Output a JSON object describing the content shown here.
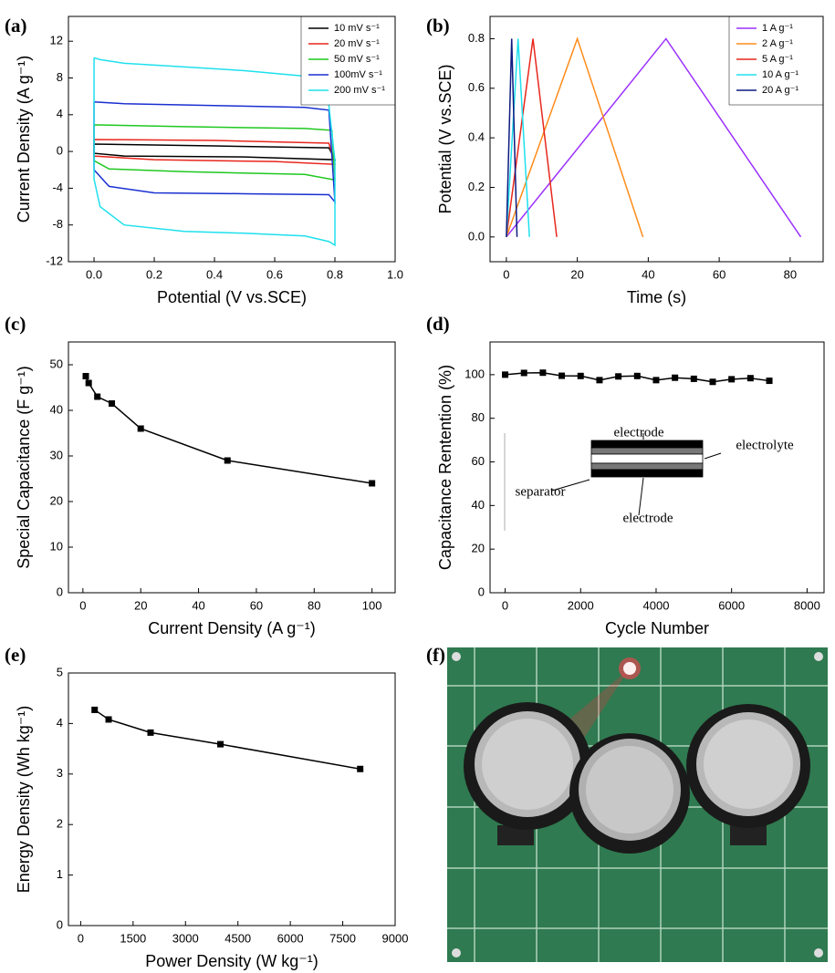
{
  "chart_data": [
    {
      "type": "line",
      "panel_label": "(a)",
      "x_label": "Potential (V vs.SCE)",
      "y_label": "Current Density (A g⁻¹)",
      "xlim": [
        -0.085,
        1.0
      ],
      "ylim": [
        -12,
        14.7
      ],
      "xticks": [
        {
          "value": 0,
          "label": "0.0"
        },
        0.2,
        0.4,
        0.6,
        0.8,
        {
          "value": 1,
          "label": "1.0"
        }
      ],
      "yticks": [
        -12,
        -8,
        -4,
        0,
        4,
        8,
        12
      ],
      "legend": "top-right",
      "series": [
        {
          "name": "10 mV s⁻¹",
          "color": "#000000",
          "x": [
            0,
            0.4,
            0.78,
            0.8,
            0.5,
            0.1,
            0,
            0
          ],
          "values": [
            0.8,
            0.6,
            0.4,
            -0.9,
            -0.6,
            -0.5,
            -0.2,
            0.8
          ]
        },
        {
          "name": "20 mV s⁻¹",
          "color": "#e8261c",
          "x": [
            0,
            0.4,
            0.78,
            0.8,
            0.6,
            0.2,
            0,
            0
          ],
          "values": [
            1.3,
            1.2,
            0.9,
            -1.4,
            -1.1,
            -0.9,
            -0.5,
            1.3
          ]
        },
        {
          "name": "50 mV s⁻¹",
          "color": "#1ec81e",
          "x": [
            0,
            0.3,
            0.7,
            0.79,
            0.8,
            0.7,
            0.3,
            0.05,
            0,
            0
          ],
          "values": [
            2.9,
            2.7,
            2.5,
            2.3,
            -3.1,
            -2.5,
            -2.2,
            -1.9,
            -1,
            2.9
          ]
        },
        {
          "name": "100mV s⁻¹",
          "color": "#1a2fd0",
          "x": [
            0,
            0.1,
            0.4,
            0.7,
            0.78,
            0.8,
            0.78,
            0.5,
            0.2,
            0.05,
            0,
            0
          ],
          "values": [
            5.4,
            5.2,
            5.0,
            4.8,
            4.5,
            -5.5,
            -4.7,
            -4.6,
            -4.5,
            -3.8,
            -2,
            5.4
          ]
        },
        {
          "name": "200 mV s⁻¹",
          "color": "#1ee0ee",
          "x": [
            0,
            0.02,
            0.1,
            0.3,
            0.5,
            0.7,
            0.76,
            0.78,
            0.8,
            0.8,
            0.78,
            0.7,
            0.5,
            0.3,
            0.1,
            0.02,
            0,
            0
          ],
          "values": [
            10.2,
            10.0,
            9.6,
            9.2,
            8.8,
            8.2,
            7.5,
            5,
            -1,
            -10.2,
            -9.8,
            -9.2,
            -8.9,
            -8.7,
            -8.0,
            -6,
            -3,
            10.2
          ]
        }
      ]
    },
    {
      "type": "line",
      "panel_label": "(b)",
      "x_label": "Time (s)",
      "y_label": "Potential (V vs.SCE)",
      "xlim": [
        -4.6,
        89.3
      ],
      "ylim": [
        -0.1,
        0.89
      ],
      "xticks": [
        0,
        20,
        40,
        60,
        80
      ],
      "yticks": [
        {
          "value": 0,
          "label": "0.0"
        },
        0.2,
        0.4,
        0.6,
        0.8
      ],
      "legend": "top-right",
      "series": [
        {
          "name": "1 A g⁻¹",
          "color": "#9b30ff",
          "x": [
            0,
            45,
            83
          ],
          "values": [
            0,
            0.8,
            0
          ]
        },
        {
          "name": "2 A g⁻¹",
          "color": "#ff8c1a",
          "x": [
            0,
            20,
            38.5
          ],
          "values": [
            0,
            0.8,
            0
          ]
        },
        {
          "name": "5 A g⁻¹",
          "color": "#e8261c",
          "x": [
            0,
            7.5,
            14.2
          ],
          "values": [
            0,
            0.8,
            0
          ]
        },
        {
          "name": "10 A g⁻¹",
          "color": "#1ee0ee",
          "x": [
            0,
            3.3,
            6.5
          ],
          "values": [
            0,
            0.8,
            0
          ]
        },
        {
          "name": "20 A g⁻¹",
          "color": "#0d1a80",
          "x": [
            0,
            1.5,
            3
          ],
          "values": [
            0,
            0.8,
            0
          ]
        }
      ]
    },
    {
      "type": "line",
      "panel_label": "(c)",
      "x_label": "Current Density (A g⁻¹)",
      "y_label": "Special Capacitance (F g⁻¹)",
      "xlim": [
        -5,
        108
      ],
      "ylim": [
        0,
        55
      ],
      "xticks": [
        0,
        20,
        40,
        60,
        80,
        100
      ],
      "yticks": [
        0,
        10,
        20,
        30,
        40,
        50
      ],
      "marker": "square",
      "color": "#000000",
      "x": [
        1,
        2,
        5,
        10,
        20,
        50,
        100
      ],
      "values": [
        47.5,
        46,
        43,
        41.5,
        36,
        29,
        24
      ]
    },
    {
      "type": "line",
      "panel_label": "(d)",
      "x_label": "Cycle Number",
      "y_label": "Capacitance Rentention (%)",
      "xlim": [
        -400,
        8450
      ],
      "ylim": [
        0,
        115
      ],
      "xticks": [
        0,
        2000,
        4000,
        6000,
        8000
      ],
      "yticks": [
        0,
        20,
        40,
        60,
        80,
        100
      ],
      "marker": "square",
      "color": "#000000",
      "x": [
        0,
        500,
        1000,
        1500,
        2000,
        2500,
        3000,
        3500,
        4000,
        4500,
        5000,
        5500,
        6000,
        6500,
        7000
      ],
      "values": [
        100,
        100.8,
        100.9,
        99.5,
        99.4,
        97.5,
        99.2,
        99.4,
        97.5,
        98.6,
        98.1,
        96.7,
        97.9,
        98.4,
        97.2
      ],
      "annotations": [
        "electrode",
        "electrolyte",
        "separator",
        "electrode"
      ]
    },
    {
      "type": "line",
      "panel_label": "(e)",
      "x_label": "Power Density (W kg⁻¹)",
      "y_label": "Energy Density (Wh kg⁻¹)",
      "xlim": [
        -350,
        9000
      ],
      "ylim": [
        0,
        5
      ],
      "xticks": [
        0,
        1500,
        3000,
        4500,
        6000,
        7500,
        9000
      ],
      "yticks": [
        0,
        1,
        2,
        3,
        4,
        5
      ],
      "marker": "square",
      "color": "#000000",
      "x": [
        400,
        800,
        2000,
        4000,
        8000
      ],
      "values": [
        4.27,
        4.08,
        3.82,
        3.59,
        3.1
      ]
    }
  ],
  "photo": {
    "panel_label": "(f)"
  }
}
